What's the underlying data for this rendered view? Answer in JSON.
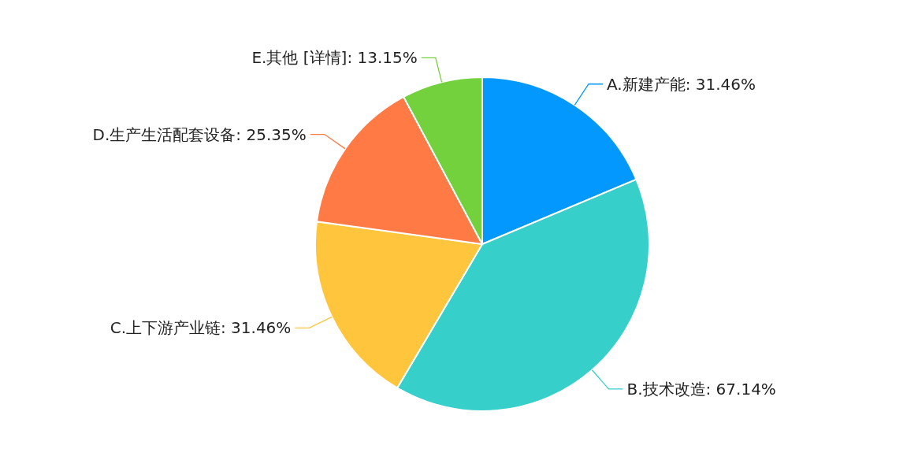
{
  "chart_data": {
    "type": "pie",
    "categories": [
      "A.新建产能",
      "B.技术改造",
      "C.上下游产业链",
      "D.生产生活配套设备",
      "E.其他  [详情]"
    ],
    "values": [
      31.46,
      67.14,
      31.46,
      25.35,
      13.15
    ],
    "value_labels": [
      "31.46%",
      "67.14%",
      "31.46%",
      "25.35%",
      "13.15%"
    ],
    "colors": [
      "#0398fe",
      "#36cfca",
      "#ffc53d",
      "#ff7a45",
      "#73d13d"
    ]
  }
}
